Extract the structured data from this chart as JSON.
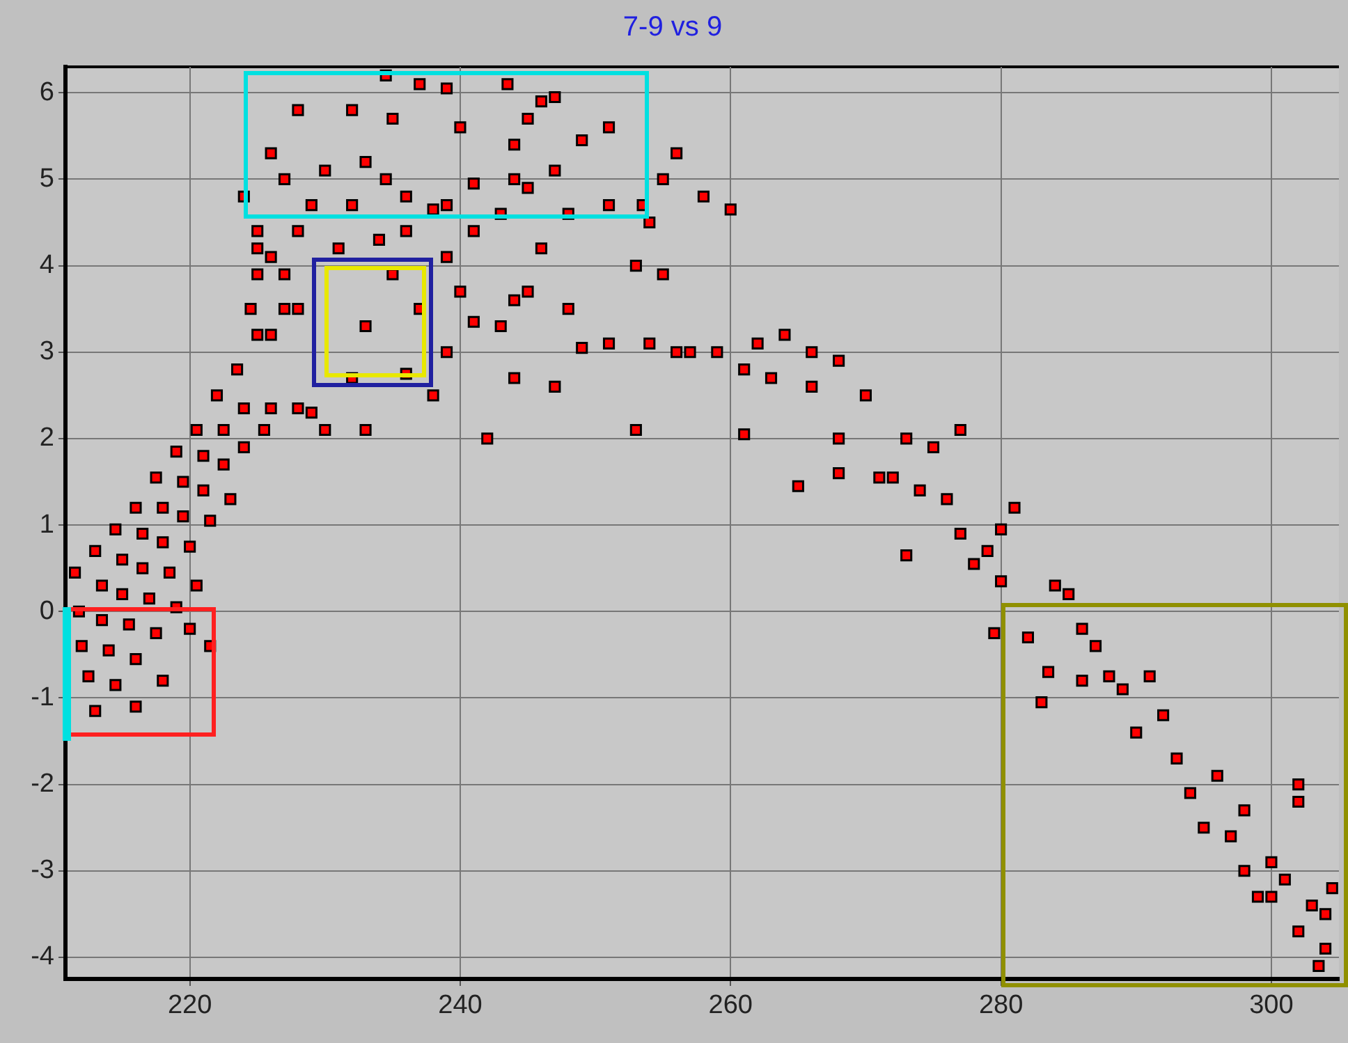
{
  "chart_data": {
    "type": "scatter",
    "title": "7-9 vs 9",
    "marker": "square",
    "grid": true,
    "legend": false,
    "xlim": [
      210.8,
      305
    ],
    "xticks": [
      220,
      240,
      260,
      280,
      300
    ],
    "ylim": [
      -4.25,
      6.3
    ],
    "yticks": [
      -4,
      -3,
      -2,
      -1,
      0,
      1,
      2,
      3,
      4,
      5,
      6
    ],
    "series": [
      {
        "color": "#ff0000",
        "x": [
          211.5,
          213,
          214.5,
          216,
          217.5,
          219,
          220.5,
          222,
          223.5,
          225,
          227,
          211.8,
          213.5,
          215,
          216.5,
          218,
          219.5,
          221,
          222.5,
          224,
          226,
          228,
          212,
          213.5,
          215,
          216.5,
          218,
          219.5,
          221,
          222.5,
          224,
          225.5,
          212.5,
          214,
          215.5,
          217,
          218.5,
          220,
          221.5,
          223,
          213,
          214.5,
          216,
          217.5,
          219,
          220.5,
          216,
          218,
          221.5,
          220,
          224,
          225,
          226,
          225,
          224.5,
          227,
          228,
          225,
          226,
          234.5,
          237,
          239,
          243.5,
          228,
          232,
          226,
          235,
          240,
          246,
          247,
          245,
          244,
          249,
          227,
          230,
          233,
          234.5,
          236,
          232,
          229,
          241,
          244,
          245,
          243,
          248,
          251,
          253.5,
          254,
          238,
          239,
          247,
          251,
          256,
          258,
          260,
          255,
          236,
          234,
          231,
          228,
          239,
          241,
          246,
          253,
          255,
          240,
          244,
          248,
          251,
          254,
          256,
          241,
          243,
          249,
          247,
          244,
          242,
          245,
          235,
          233,
          237,
          236,
          238,
          230,
          233,
          229,
          232,
          239,
          253,
          257,
          259,
          262,
          264,
          261,
          263,
          266,
          268,
          266,
          270,
          261,
          265,
          268,
          271,
          273,
          275,
          277,
          268,
          272,
          274,
          276,
          277,
          278,
          273,
          280,
          281,
          279,
          280,
          279.5,
          282,
          284,
          283.5,
          285,
          286,
          287,
          288,
          289,
          286,
          283,
          291,
          292,
          290,
          293,
          294,
          296,
          298,
          295,
          297,
          298,
          300,
          301,
          303,
          302,
          304,
          302,
          302,
          304,
          303.5,
          304.5,
          300,
          299
        ],
        "values": [
          0.45,
          0.7,
          0.95,
          1.2,
          1.55,
          1.85,
          2.1,
          2.5,
          2.8,
          3.2,
          3.5,
          0.0,
          0.3,
          0.6,
          0.9,
          1.2,
          1.5,
          1.8,
          2.1,
          2.35,
          2.35,
          2.35,
          -0.4,
          -0.1,
          0.2,
          0.5,
          0.8,
          1.1,
          1.4,
          1.7,
          1.9,
          2.1,
          -0.75,
          -0.45,
          -0.15,
          0.15,
          0.45,
          0.75,
          1.05,
          1.3,
          -1.15,
          -0.85,
          -0.55,
          -0.25,
          0.05,
          0.3,
          -1.1,
          -0.8,
          -0.4,
          -0.2,
          4.8,
          4.4,
          4.1,
          3.9,
          3.5,
          3.9,
          3.5,
          4.2,
          3.2,
          6.2,
          6.1,
          6.05,
          6.1,
          5.8,
          5.8,
          5.3,
          5.7,
          5.6,
          5.9,
          5.95,
          5.7,
          5.4,
          5.45,
          5.0,
          5.1,
          5.2,
          5.0,
          4.8,
          4.7,
          4.7,
          4.95,
          5.0,
          4.9,
          4.6,
          4.6,
          4.7,
          4.7,
          4.5,
          4.65,
          4.7,
          5.1,
          5.6,
          5.3,
          4.8,
          4.65,
          5.0,
          4.4,
          4.3,
          4.2,
          4.4,
          4.1,
          4.4,
          4.2,
          4.0,
          3.9,
          3.7,
          3.6,
          3.5,
          3.1,
          3.1,
          3.0,
          3.35,
          3.3,
          3.05,
          2.6,
          2.7,
          2.0,
          3.7,
          3.9,
          3.3,
          3.5,
          2.75,
          2.5,
          2.1,
          2.1,
          2.3,
          2.7,
          3.0,
          2.1,
          3.0,
          3.0,
          3.1,
          3.2,
          2.8,
          2.7,
          3.0,
          2.9,
          2.6,
          2.5,
          2.05,
          1.45,
          2.0,
          1.55,
          2.0,
          1.9,
          2.1,
          1.6,
          1.55,
          1.4,
          1.3,
          0.9,
          0.55,
          0.65,
          0.95,
          1.2,
          0.7,
          0.35,
          -0.25,
          -0.3,
          0.3,
          -0.7,
          0.2,
          -0.2,
          -0.4,
          -0.75,
          -0.9,
          -0.8,
          -1.05,
          -0.75,
          -1.2,
          -1.4,
          -1.7,
          -2.1,
          -1.9,
          -2.3,
          -2.5,
          -2.6,
          -3.0,
          -3.3,
          -3.1,
          -3.4,
          -3.7,
          -3.5,
          -2.2,
          -2.0,
          -3.9,
          -4.1,
          -3.2,
          -2.9,
          -3.3
        ]
      }
    ]
  }
}
